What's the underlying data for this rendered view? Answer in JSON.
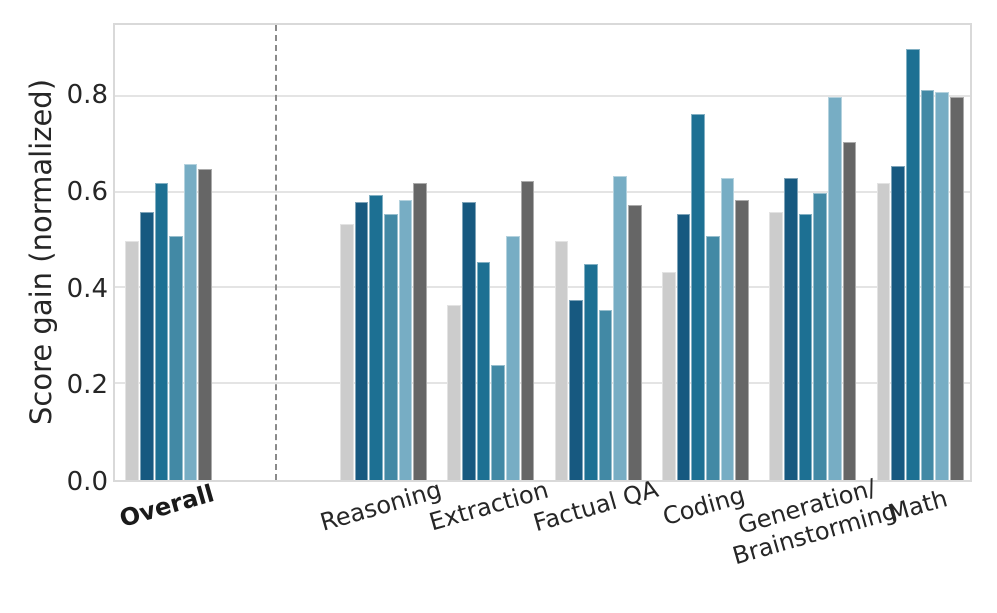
{
  "chart_data": {
    "type": "bar",
    "title": "",
    "xlabel": "",
    "ylabel": "Score gain (normalized)",
    "ylim": [
      0,
      0.95
    ],
    "yticks": [
      0.0,
      0.2,
      0.4,
      0.6,
      0.8
    ],
    "ytick_labels": [
      "0.0",
      "0.2",
      "0.4",
      "0.6",
      "0.8"
    ],
    "grid": "horizontal",
    "legend": "none",
    "background": "#ffffff",
    "text_color": "#262626",
    "gridline_color": "#e4e4e4",
    "divider_color": "#8a8a8a",
    "categories": [
      "Overall",
      "Reasoning",
      "Extraction",
      "Factual QA",
      "Coding",
      "Generation/\nBrainstorming",
      "Math"
    ],
    "emphasized_category": "Overall",
    "slot_positions": [
      0,
      2,
      3,
      4,
      5,
      6,
      7
    ],
    "x_slot_count": 8,
    "divider_slot": 1,
    "series": [
      {
        "name": "light-gray-bar",
        "color": "#cccccc",
        "values": [
          0.5,
          0.535,
          0.365,
          0.5,
          0.435,
          0.56,
          0.62
        ]
      },
      {
        "name": "dark-blue-bar",
        "color": "#175980",
        "values": [
          0.56,
          0.58,
          0.58,
          0.375,
          0.555,
          0.63,
          0.655
        ]
      },
      {
        "name": "teal-blue-bar",
        "color": "#1d7093",
        "values": [
          0.62,
          0.595,
          0.455,
          0.45,
          0.765,
          0.555,
          0.9
        ]
      },
      {
        "name": "steel-blue-bar",
        "color": "#4289a5",
        "values": [
          0.51,
          0.555,
          0.24,
          0.355,
          0.51,
          0.6,
          0.815
        ]
      },
      {
        "name": "light-blue-bar",
        "color": "#77adc4",
        "values": [
          0.66,
          0.585,
          0.51,
          0.635,
          0.63,
          0.8,
          0.81
        ]
      },
      {
        "name": "dark-gray-bar",
        "color": "#666666",
        "values": [
          0.65,
          0.62,
          0.625,
          0.575,
          0.585,
          0.705,
          0.8
        ]
      }
    ]
  }
}
